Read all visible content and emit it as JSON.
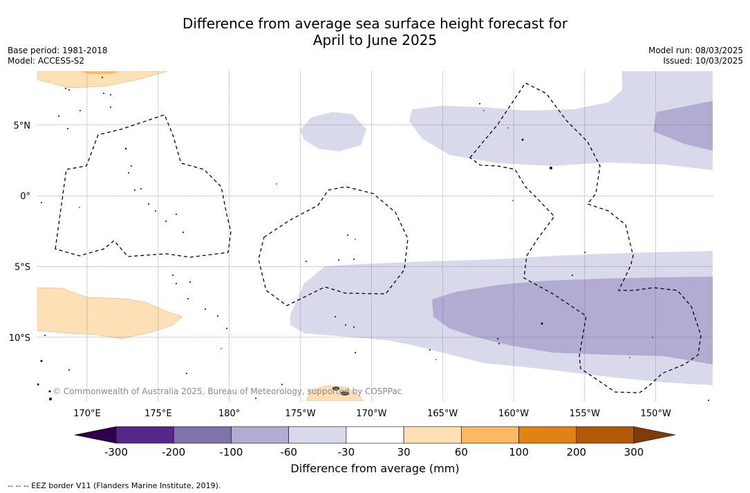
{
  "title_line1": "Difference from average sea surface height forecast for",
  "title_line2": "April to June 2025",
  "base_period": "Base period: 1981-2018",
  "model": "Model: ACCESS-S2",
  "model_run": "Model run: 08/03/2025",
  "issued": "Issued: 10/03/2025",
  "copyright": "© Commonwealth of Australia 2025, Bureau of Meteorology, supported by COSPPac",
  "footnote": "--  --  -- EEZ border V11 (Flanders Marine Institute, 2019).",
  "colorbar": {
    "title": "Difference from average (mm)",
    "tick_labels": [
      "-300",
      "-200",
      "-100",
      "-60",
      "-30",
      "30",
      "60",
      "100",
      "200",
      "300"
    ],
    "colors": [
      "#2d004b",
      "#542788",
      "#8073ac",
      "#b2abd2",
      "#d8daeb",
      "#ffffff",
      "#fee0b6",
      "#fdb863",
      "#e08214",
      "#b35806",
      "#7f3b08"
    ]
  },
  "map": {
    "lat_labels": [
      "5°N",
      "0°",
      "5°S",
      "10°S"
    ],
    "lon_labels": [
      "170°E",
      "175°E",
      "180°",
      "175°W",
      "170°W",
      "165°W",
      "160°W",
      "155°W",
      "150°W"
    ],
    "lat_values": [
      5,
      0,
      -5,
      -10
    ],
    "lon_values": [
      170,
      175,
      180,
      185,
      190,
      195,
      200,
      205,
      210
    ],
    "lon_range": [
      166.5,
      214
    ],
    "lat_range": [
      -14.5,
      8.8
    ]
  }
}
